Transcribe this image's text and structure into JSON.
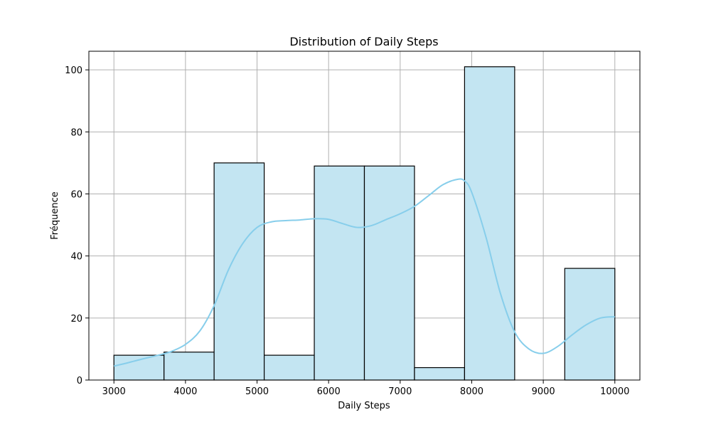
{
  "chart_data": {
    "type": "bar",
    "title": "Distribution of Daily Steps",
    "xlabel": "Daily Steps",
    "ylabel": "Fréquence",
    "xlim": [
      2650,
      10350
    ],
    "ylim": [
      0,
      106
    ],
    "xticks": [
      3000,
      4000,
      5000,
      6000,
      7000,
      8000,
      9000,
      10000
    ],
    "yticks": [
      0,
      20,
      40,
      60,
      80,
      100
    ],
    "grid": true,
    "bins": [
      {
        "x0": 3000,
        "x1": 3700,
        "count": 8
      },
      {
        "x0": 3700,
        "x1": 4400,
        "count": 9
      },
      {
        "x0": 4400,
        "x1": 5100,
        "count": 70
      },
      {
        "x0": 5100,
        "x1": 5800,
        "count": 8
      },
      {
        "x0": 5800,
        "x1": 6500,
        "count": 69
      },
      {
        "x0": 6500,
        "x1": 7200,
        "count": 69
      },
      {
        "x0": 7200,
        "x1": 7900,
        "count": 4
      },
      {
        "x0": 7900,
        "x1": 8600,
        "count": 101
      },
      {
        "x0": 8600,
        "x1": 9300,
        "count": 0
      },
      {
        "x0": 9300,
        "x1": 10000,
        "count": 36
      }
    ],
    "kde": {
      "x": [
        3000,
        3200,
        3400,
        3600,
        3800,
        4000,
        4200,
        4400,
        4600,
        4800,
        5000,
        5200,
        5400,
        5600,
        5800,
        6000,
        6200,
        6400,
        6600,
        6800,
        7000,
        7200,
        7400,
        7600,
        7800,
        7900,
        8000,
        8200,
        8400,
        8600,
        8800,
        9000,
        9200,
        9400,
        9600,
        9800,
        10000
      ],
      "y": [
        4.5,
        5.6,
        6.8,
        7.9,
        9.2,
        11.5,
        15.8,
        24,
        35.5,
        44,
        49.2,
        51,
        51.4,
        51.6,
        52,
        51.8,
        50.4,
        49.2,
        49.8,
        51.7,
        53.6,
        56,
        59.5,
        63,
        64.7,
        64.2,
        60.5,
        46,
        28,
        15.5,
        10,
        8.6,
        10.8,
        14.5,
        17.8,
        20,
        20.4
      ]
    },
    "colors": {
      "bar_fill": "#c3e5f2",
      "bar_edge": "#000000",
      "kde_line": "#87ceeb",
      "grid": "#b0b0b0"
    }
  }
}
